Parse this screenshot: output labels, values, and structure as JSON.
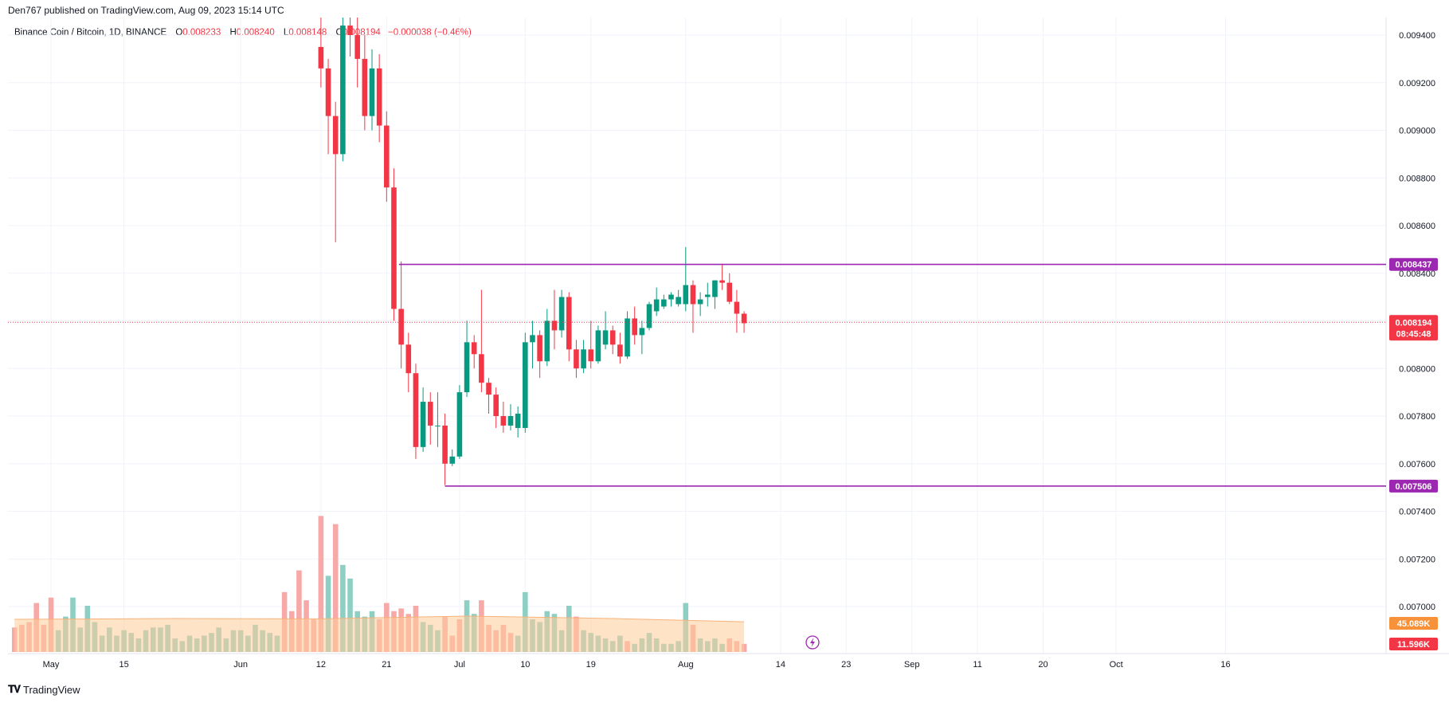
{
  "header": {
    "publisher": "Den767 published on TradingView.com, Aug 09, 2023 15:14 UTC"
  },
  "legend": {
    "symbol": "Binance Coin / Bitcoin, 1D, BINANCE",
    "o_label": "O",
    "o_value": "0.008233",
    "h_label": "H",
    "h_value": "0.008240",
    "l_label": "L",
    "l_value": "0.008148",
    "c_label": "C",
    "c_value": "0.008194",
    "change": "−0.000038 (−0.46%)"
  },
  "footer": {
    "brand": "TradingView",
    "logo": "tradingview-logo-icon"
  },
  "colors": {
    "up": "#089981",
    "down": "#f23645",
    "level": "#9c27b0",
    "volume_up": "#8ecfc4",
    "volume_down": "#f7a9a8",
    "volume_ma": "#ffcc99",
    "grid": "#f0f3fa",
    "price_badge": "#f23645",
    "vol_ma_badge": "#f7913a"
  },
  "chart_data": {
    "type": "candlestick",
    "title": "Binance Coin / Bitcoin, 1D, BINANCE",
    "ylim": [
      0.00678,
      0.00948
    ],
    "y_ticks": [
      "0.009400",
      "0.009200",
      "0.009000",
      "0.008800",
      "0.008600",
      "0.008400",
      "0.008200",
      "0.008000",
      "0.007800",
      "0.007600",
      "0.007400",
      "0.007200",
      "0.007000"
    ],
    "x_ticks": [
      {
        "day": 3,
        "label": "May"
      },
      {
        "day": 13,
        "label": "15"
      },
      {
        "day": 29,
        "label": "Jun"
      },
      {
        "day": 40,
        "label": "12"
      },
      {
        "day": 49,
        "label": "21"
      },
      {
        "day": 59,
        "label": "Jul"
      },
      {
        "day": 68,
        "label": "10"
      },
      {
        "day": 77,
        "label": "19"
      },
      {
        "day": 90,
        "label": "Aug"
      },
      {
        "day": 103,
        "label": "14"
      },
      {
        "day": 112,
        "label": "23"
      },
      {
        "day": 121,
        "label": "Sep"
      },
      {
        "day": 130,
        "label": "11"
      },
      {
        "day": 139,
        "label": "20"
      },
      {
        "day": 149,
        "label": "Oct"
      },
      {
        "day": 164,
        "label": "16"
      }
    ],
    "x_range_days": [
      -2.9,
      186
    ],
    "candles": [
      {
        "day": 40,
        "o": 0.00935,
        "h": 0.00948,
        "l": 0.00918,
        "c": 0.00926
      },
      {
        "day": 41,
        "o": 0.00926,
        "h": 0.0093,
        "l": 0.0089,
        "c": 0.00906
      },
      {
        "day": 42,
        "o": 0.00906,
        "h": 0.00912,
        "l": 0.00853,
        "c": 0.0089
      },
      {
        "day": 43,
        "o": 0.0089,
        "h": 0.00948,
        "l": 0.00887,
        "c": 0.00944
      },
      {
        "day": 44,
        "o": 0.00944,
        "h": 0.00948,
        "l": 0.00931,
        "c": 0.0094
      },
      {
        "day": 45,
        "o": 0.0094,
        "h": 0.00948,
        "l": 0.00918,
        "c": 0.0093
      },
      {
        "day": 46,
        "o": 0.0093,
        "h": 0.0094,
        "l": 0.009,
        "c": 0.00906
      },
      {
        "day": 47,
        "o": 0.00906,
        "h": 0.00934,
        "l": 0.009,
        "c": 0.00926
      },
      {
        "day": 48,
        "o": 0.00926,
        "h": 0.00932,
        "l": 0.00895,
        "c": 0.00902
      },
      {
        "day": 49,
        "o": 0.00902,
        "h": 0.00908,
        "l": 0.0087,
        "c": 0.00876
      },
      {
        "day": 50,
        "o": 0.00876,
        "h": 0.00884,
        "l": 0.0082,
        "c": 0.00825
      },
      {
        "day": 51,
        "o": 0.00825,
        "h": 0.00845,
        "l": 0.008,
        "c": 0.0081
      },
      {
        "day": 52,
        "o": 0.0081,
        "h": 0.00815,
        "l": 0.0079,
        "c": 0.00798
      },
      {
        "day": 53,
        "o": 0.00798,
        "h": 0.00802,
        "l": 0.00762,
        "c": 0.00767
      },
      {
        "day": 54,
        "o": 0.00767,
        "h": 0.00792,
        "l": 0.00765,
        "c": 0.00786
      },
      {
        "day": 55,
        "o": 0.00786,
        "h": 0.0079,
        "l": 0.00768,
        "c": 0.00776
      },
      {
        "day": 56,
        "o": 0.00776,
        "h": 0.0079,
        "l": 0.00767,
        "c": 0.00776
      },
      {
        "day": 57,
        "o": 0.00776,
        "h": 0.00781,
        "l": 0.00751,
        "c": 0.0076
      },
      {
        "day": 58,
        "o": 0.0076,
        "h": 0.00766,
        "l": 0.00759,
        "c": 0.00763
      },
      {
        "day": 59,
        "o": 0.00763,
        "h": 0.00793,
        "l": 0.00762,
        "c": 0.0079
      },
      {
        "day": 60,
        "o": 0.0079,
        "h": 0.0082,
        "l": 0.00788,
        "c": 0.00811
      },
      {
        "day": 61,
        "o": 0.00811,
        "h": 0.00814,
        "l": 0.008,
        "c": 0.00806
      },
      {
        "day": 62,
        "o": 0.00806,
        "h": 0.00833,
        "l": 0.0079,
        "c": 0.00794
      },
      {
        "day": 63,
        "o": 0.00794,
        "h": 0.00796,
        "l": 0.00781,
        "c": 0.00789
      },
      {
        "day": 64,
        "o": 0.00789,
        "h": 0.00792,
        "l": 0.00775,
        "c": 0.0078
      },
      {
        "day": 65,
        "o": 0.0078,
        "h": 0.00786,
        "l": 0.00773,
        "c": 0.00776
      },
      {
        "day": 66,
        "o": 0.00776,
        "h": 0.00785,
        "l": 0.00774,
        "c": 0.0078
      },
      {
        "day": 67,
        "o": 0.00775,
        "h": 0.00784,
        "l": 0.00771,
        "c": 0.00781
      },
      {
        "day": 68,
        "o": 0.00775,
        "h": 0.00815,
        "l": 0.00773,
        "c": 0.00811
      },
      {
        "day": 69,
        "o": 0.00811,
        "h": 0.0082,
        "l": 0.008,
        "c": 0.00814
      },
      {
        "day": 70,
        "o": 0.00814,
        "h": 0.00816,
        "l": 0.00796,
        "c": 0.00803
      },
      {
        "day": 71,
        "o": 0.00803,
        "h": 0.00825,
        "l": 0.00801,
        "c": 0.0082
      },
      {
        "day": 72,
        "o": 0.0082,
        "h": 0.00833,
        "l": 0.00808,
        "c": 0.00816
      },
      {
        "day": 73,
        "o": 0.00816,
        "h": 0.00833,
        "l": 0.00813,
        "c": 0.0083
      },
      {
        "day": 74,
        "o": 0.0083,
        "h": 0.00832,
        "l": 0.00803,
        "c": 0.00808
      },
      {
        "day": 75,
        "o": 0.00808,
        "h": 0.00812,
        "l": 0.00796,
        "c": 0.008
      },
      {
        "day": 76,
        "o": 0.008,
        "h": 0.00812,
        "l": 0.00798,
        "c": 0.00808
      },
      {
        "day": 77,
        "o": 0.00808,
        "h": 0.0082,
        "l": 0.008,
        "c": 0.00803
      },
      {
        "day": 78,
        "o": 0.00803,
        "h": 0.00818,
        "l": 0.00802,
        "c": 0.00816
      },
      {
        "day": 79,
        "o": 0.0081,
        "h": 0.00824,
        "l": 0.00808,
        "c": 0.00816
      },
      {
        "day": 80,
        "o": 0.00816,
        "h": 0.00818,
        "l": 0.00806,
        "c": 0.0081
      },
      {
        "day": 81,
        "o": 0.0081,
        "h": 0.00815,
        "l": 0.00802,
        "c": 0.00805
      },
      {
        "day": 82,
        "o": 0.00805,
        "h": 0.00824,
        "l": 0.00804,
        "c": 0.00821
      },
      {
        "day": 83,
        "o": 0.00821,
        "h": 0.00826,
        "l": 0.0081,
        "c": 0.00814
      },
      {
        "day": 84,
        "o": 0.00814,
        "h": 0.0082,
        "l": 0.00806,
        "c": 0.00817
      },
      {
        "day": 85,
        "o": 0.00817,
        "h": 0.00828,
        "l": 0.00816,
        "c": 0.00827
      },
      {
        "day": 86,
        "o": 0.00824,
        "h": 0.00834,
        "l": 0.00822,
        "c": 0.00829
      },
      {
        "day": 87,
        "o": 0.00826,
        "h": 0.00831,
        "l": 0.00825,
        "c": 0.00829
      },
      {
        "day": 88,
        "o": 0.00829,
        "h": 0.00832,
        "l": 0.00826,
        "c": 0.00831
      },
      {
        "day": 89,
        "o": 0.00827,
        "h": 0.00833,
        "l": 0.00826,
        "c": 0.0083
      },
      {
        "day": 90,
        "o": 0.00827,
        "h": 0.00851,
        "l": 0.00824,
        "c": 0.00835
      },
      {
        "day": 91,
        "o": 0.00835,
        "h": 0.00837,
        "l": 0.00815,
        "c": 0.00827
      },
      {
        "day": 92,
        "o": 0.00827,
        "h": 0.00832,
        "l": 0.00822,
        "c": 0.00829
      },
      {
        "day": 93,
        "o": 0.0083,
        "h": 0.00836,
        "l": 0.00826,
        "c": 0.00831
      },
      {
        "day": 94,
        "o": 0.0083,
        "h": 0.00837,
        "l": 0.00825,
        "c": 0.00837
      },
      {
        "day": 95,
        "o": 0.00837,
        "h": 0.00844,
        "l": 0.00833,
        "c": 0.00836
      },
      {
        "day": 96,
        "o": 0.00836,
        "h": 0.0084,
        "l": 0.00827,
        "c": 0.00828
      },
      {
        "day": 97,
        "o": 0.00828,
        "h": 0.00833,
        "l": 0.00815,
        "c": 0.00823
      },
      {
        "day": 98,
        "o": 0.00823,
        "h": 0.00824,
        "l": 0.00815,
        "c": 0.00819
      }
    ],
    "volume_ylim": [
      0,
      58
    ],
    "volume": [
      {
        "day": -2,
        "v": 9,
        "up": false
      },
      {
        "day": -1,
        "v": 10,
        "up": false
      },
      {
        "day": 0,
        "v": 11,
        "up": false
      },
      {
        "day": 1,
        "v": 18,
        "up": false
      },
      {
        "day": 2,
        "v": 10,
        "up": false
      },
      {
        "day": 3,
        "v": 20,
        "up": false
      },
      {
        "day": 4,
        "v": 8,
        "up": true
      },
      {
        "day": 5,
        "v": 13,
        "up": true
      },
      {
        "day": 6,
        "v": 20,
        "up": true
      },
      {
        "day": 7,
        "v": 9,
        "up": true
      },
      {
        "day": 8,
        "v": 17,
        "up": true
      },
      {
        "day": 9,
        "v": 11,
        "up": true
      },
      {
        "day": 10,
        "v": 6,
        "up": true
      },
      {
        "day": 11,
        "v": 9,
        "up": true
      },
      {
        "day": 12,
        "v": 6,
        "up": true
      },
      {
        "day": 13,
        "v": 8,
        "up": true
      },
      {
        "day": 14,
        "v": 7,
        "up": true
      },
      {
        "day": 15,
        "v": 5,
        "up": true
      },
      {
        "day": 16,
        "v": 8,
        "up": true
      },
      {
        "day": 17,
        "v": 9,
        "up": true
      },
      {
        "day": 18,
        "v": 9,
        "up": true
      },
      {
        "day": 19,
        "v": 10,
        "up": true
      },
      {
        "day": 20,
        "v": 5,
        "up": true
      },
      {
        "day": 21,
        "v": 4,
        "up": true
      },
      {
        "day": 22,
        "v": 6,
        "up": true
      },
      {
        "day": 23,
        "v": 5,
        "up": true
      },
      {
        "day": 24,
        "v": 6,
        "up": true
      },
      {
        "day": 25,
        "v": 7,
        "up": true
      },
      {
        "day": 26,
        "v": 9,
        "up": true
      },
      {
        "day": 27,
        "v": 5,
        "up": true
      },
      {
        "day": 28,
        "v": 8,
        "up": true
      },
      {
        "day": 29,
        "v": 8,
        "up": true
      },
      {
        "day": 30,
        "v": 6,
        "up": true
      },
      {
        "day": 31,
        "v": 10,
        "up": true
      },
      {
        "day": 32,
        "v": 8,
        "up": true
      },
      {
        "day": 33,
        "v": 7,
        "up": true
      },
      {
        "day": 34,
        "v": 6,
        "up": true
      },
      {
        "day": 35,
        "v": 22,
        "up": false
      },
      {
        "day": 36,
        "v": 15,
        "up": false
      },
      {
        "day": 37,
        "v": 30,
        "up": false
      },
      {
        "day": 38,
        "v": 19,
        "up": false
      },
      {
        "day": 39,
        "v": 12,
        "up": false
      },
      {
        "day": 40,
        "v": 50,
        "up": false
      },
      {
        "day": 41,
        "v": 28,
        "up": true
      },
      {
        "day": 42,
        "v": 47,
        "up": false
      },
      {
        "day": 43,
        "v": 32,
        "up": true
      },
      {
        "day": 44,
        "v": 27,
        "up": true
      },
      {
        "day": 45,
        "v": 15,
        "up": true
      },
      {
        "day": 46,
        "v": 13,
        "up": true
      },
      {
        "day": 47,
        "v": 15,
        "up": true
      },
      {
        "day": 48,
        "v": 12,
        "up": false
      },
      {
        "day": 49,
        "v": 18,
        "up": false
      },
      {
        "day": 50,
        "v": 15,
        "up": false
      },
      {
        "day": 51,
        "v": 16,
        "up": false
      },
      {
        "day": 52,
        "v": 14,
        "up": false
      },
      {
        "day": 53,
        "v": 17,
        "up": false
      },
      {
        "day": 54,
        "v": 11,
        "up": true
      },
      {
        "day": 55,
        "v": 10,
        "up": true
      },
      {
        "day": 56,
        "v": 8,
        "up": true
      },
      {
        "day": 57,
        "v": 13,
        "up": false
      },
      {
        "day": 58,
        "v": 6,
        "up": false
      },
      {
        "day": 59,
        "v": 12,
        "up": false
      },
      {
        "day": 60,
        "v": 19,
        "up": true
      },
      {
        "day": 61,
        "v": 14,
        "up": true
      },
      {
        "day": 62,
        "v": 19,
        "up": false
      },
      {
        "day": 63,
        "v": 10,
        "up": false
      },
      {
        "day": 64,
        "v": 8,
        "up": false
      },
      {
        "day": 65,
        "v": 10,
        "up": false
      },
      {
        "day": 66,
        "v": 7,
        "up": false
      },
      {
        "day": 67,
        "v": 6,
        "up": true
      },
      {
        "day": 68,
        "v": 22,
        "up": true
      },
      {
        "day": 69,
        "v": 12,
        "up": true
      },
      {
        "day": 70,
        "v": 11,
        "up": true
      },
      {
        "day": 71,
        "v": 15,
        "up": true
      },
      {
        "day": 72,
        "v": 14,
        "up": true
      },
      {
        "day": 73,
        "v": 8,
        "up": true
      },
      {
        "day": 74,
        "v": 17,
        "up": true
      },
      {
        "day": 75,
        "v": 13,
        "up": false
      },
      {
        "day": 76,
        "v": 8,
        "up": true
      },
      {
        "day": 77,
        "v": 7,
        "up": true
      },
      {
        "day": 78,
        "v": 6,
        "up": true
      },
      {
        "day": 79,
        "v": 5,
        "up": true
      },
      {
        "day": 80,
        "v": 4,
        "up": true
      },
      {
        "day": 81,
        "v": 6,
        "up": true
      },
      {
        "day": 82,
        "v": 4,
        "up": false
      },
      {
        "day": 83,
        "v": 3,
        "up": true
      },
      {
        "day": 84,
        "v": 5,
        "up": true
      },
      {
        "day": 85,
        "v": 7,
        "up": true
      },
      {
        "day": 86,
        "v": 5,
        "up": true
      },
      {
        "day": 87,
        "v": 3,
        "up": true
      },
      {
        "day": 88,
        "v": 3,
        "up": true
      },
      {
        "day": 89,
        "v": 4,
        "up": true
      },
      {
        "day": 90,
        "v": 18,
        "up": true
      },
      {
        "day": 91,
        "v": 10,
        "up": false
      },
      {
        "day": 92,
        "v": 5,
        "up": true
      },
      {
        "day": 93,
        "v": 4,
        "up": true
      },
      {
        "day": 94,
        "v": 5,
        "up": true
      },
      {
        "day": 95,
        "v": 3,
        "up": true
      },
      {
        "day": 96,
        "v": 5,
        "up": false
      },
      {
        "day": 97,
        "v": 4,
        "up": false
      },
      {
        "day": 98,
        "v": 3,
        "up": false
      }
    ],
    "volume_ma": [
      {
        "day": -2,
        "v": 12
      },
      {
        "day": 20,
        "v": 12.3
      },
      {
        "day": 40,
        "v": 12.2
      },
      {
        "day": 60,
        "v": 13.2
      },
      {
        "day": 80,
        "v": 12.3
      },
      {
        "day": 98,
        "v": 11.1
      }
    ],
    "levels": [
      {
        "name": "resistance",
        "value": 0.008437,
        "label": "0.008437",
        "start_day": 50.7
      },
      {
        "name": "support",
        "value": 0.007506,
        "label": "0.007506",
        "start_day": 57
      }
    ],
    "current_price": {
      "value": 0.008194,
      "label": "0.008194",
      "countdown": "08:45:48"
    },
    "volume_labels": {
      "ma_label": "45.089K",
      "volume_label": "11.596K"
    },
    "grid": true,
    "legend_position": "top-left"
  }
}
